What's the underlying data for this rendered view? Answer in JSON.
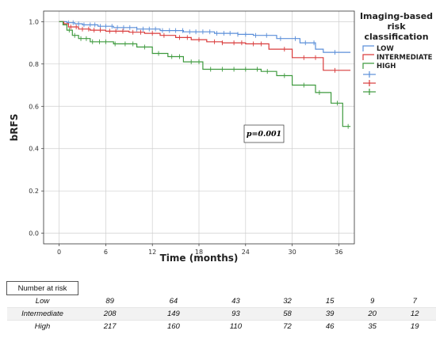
{
  "chart_data": {
    "type": "line",
    "title": "",
    "xlabel": "Time (months)",
    "ylabel": "bRFS",
    "xlim": [
      -2,
      38
    ],
    "ylim": [
      -0.05,
      1.05
    ],
    "x_ticks": [
      0,
      6,
      12,
      18,
      24,
      30,
      36
    ],
    "x_tick_labels": [
      "0",
      "6",
      "12",
      "18",
      "24",
      "30",
      "36"
    ],
    "y_ticks": [
      0.0,
      0.2,
      0.4,
      0.6,
      0.8,
      1.0
    ],
    "y_tick_labels": [
      "0.0",
      "0.2",
      "0.4",
      "0.6",
      "0.8",
      "1.0"
    ],
    "grid": true,
    "legend": {
      "title": "Imaging-based risk classification",
      "title_lines": [
        "Imaging-based",
        "risk",
        "classification"
      ],
      "placement": "top-right",
      "entries": [
        "LOW",
        "INTERMEDIATE",
        "HIGH",
        "",
        "",
        ""
      ]
    },
    "annotation": "p=0.001",
    "series": [
      {
        "name": "LOW",
        "color": "#5b8fd9",
        "points": [
          [
            0,
            1.0
          ],
          [
            1,
            0.995
          ],
          [
            2,
            0.99
          ],
          [
            3,
            0.985
          ],
          [
            5,
            0.978
          ],
          [
            7,
            0.972
          ],
          [
            10,
            0.965
          ],
          [
            13,
            0.958
          ],
          [
            16,
            0.952
          ],
          [
            20,
            0.945
          ],
          [
            23,
            0.94
          ],
          [
            25,
            0.935
          ],
          [
            28,
            0.92
          ],
          [
            31,
            0.9
          ],
          [
            33,
            0.87
          ],
          [
            34,
            0.855
          ],
          [
            37.5,
            0.855
          ]
        ],
        "censors": [
          1.2,
          1.8,
          2.5,
          3.2,
          4,
          4.6,
          5.3,
          6,
          6.8,
          7.5,
          8.3,
          9.1,
          10,
          10.8,
          11.6,
          12.4,
          13.3,
          14.2,
          15,
          15.9,
          16.8,
          17.6,
          18.5,
          19.4,
          20.3,
          21.2,
          22,
          23,
          24,
          25.3,
          26.7,
          28.5,
          30.4,
          31.7,
          32.8,
          35.5
        ]
      },
      {
        "name": "INTERMEDIATE",
        "color": "#d93b3b",
        "points": [
          [
            0,
            1.0
          ],
          [
            0.6,
            0.99
          ],
          [
            1.2,
            0.975
          ],
          [
            2.5,
            0.965
          ],
          [
            4,
            0.96
          ],
          [
            6,
            0.955
          ],
          [
            9,
            0.95
          ],
          [
            11,
            0.945
          ],
          [
            13,
            0.935
          ],
          [
            15,
            0.925
          ],
          [
            17,
            0.915
          ],
          [
            19,
            0.905
          ],
          [
            21,
            0.9
          ],
          [
            24,
            0.895
          ],
          [
            27,
            0.87
          ],
          [
            30,
            0.83
          ],
          [
            34,
            0.77
          ],
          [
            37.5,
            0.77
          ]
        ],
        "censors": [
          1.5,
          2.2,
          3,
          3.8,
          4.5,
          5.3,
          6.5,
          7.3,
          8.2,
          9.5,
          10.5,
          12,
          13.5,
          15.5,
          16.5,
          18,
          20,
          21,
          22.5,
          23.5,
          25,
          26,
          29,
          31.5,
          33,
          35.5
        ]
      },
      {
        "name": "HIGH",
        "color": "#3e9a3e",
        "points": [
          [
            0,
            1.0
          ],
          [
            0.5,
            0.985
          ],
          [
            1,
            0.96
          ],
          [
            1.7,
            0.935
          ],
          [
            2.5,
            0.92
          ],
          [
            4,
            0.905
          ],
          [
            7,
            0.895
          ],
          [
            10,
            0.88
          ],
          [
            12,
            0.85
          ],
          [
            14,
            0.835
          ],
          [
            16,
            0.81
          ],
          [
            18.5,
            0.775
          ],
          [
            26,
            0.765
          ],
          [
            28,
            0.745
          ],
          [
            30,
            0.7
          ],
          [
            33,
            0.665
          ],
          [
            35,
            0.615
          ],
          [
            36.5,
            0.505
          ],
          [
            37.5,
            0.505
          ]
        ],
        "censors": [
          1.3,
          2,
          2.8,
          3.5,
          4.3,
          5.2,
          6,
          7.2,
          8.5,
          9.5,
          11,
          12.8,
          14.5,
          15.5,
          17,
          18,
          19.5,
          21,
          22.5,
          24,
          25.5,
          26.8,
          29,
          31.5,
          33.5,
          35.8,
          37.2
        ]
      }
    ]
  },
  "risk_table": {
    "header": "Number at risk",
    "rows": [
      {
        "label": "Low",
        "values": [
          "89",
          "64",
          "43",
          "32",
          "15",
          "9",
          "7"
        ]
      },
      {
        "label": "Intermediate",
        "values": [
          "208",
          "149",
          "93",
          "58",
          "39",
          "20",
          "12"
        ]
      },
      {
        "label": "High",
        "values": [
          "217",
          "160",
          "110",
          "72",
          "46",
          "35",
          "19"
        ]
      }
    ]
  }
}
